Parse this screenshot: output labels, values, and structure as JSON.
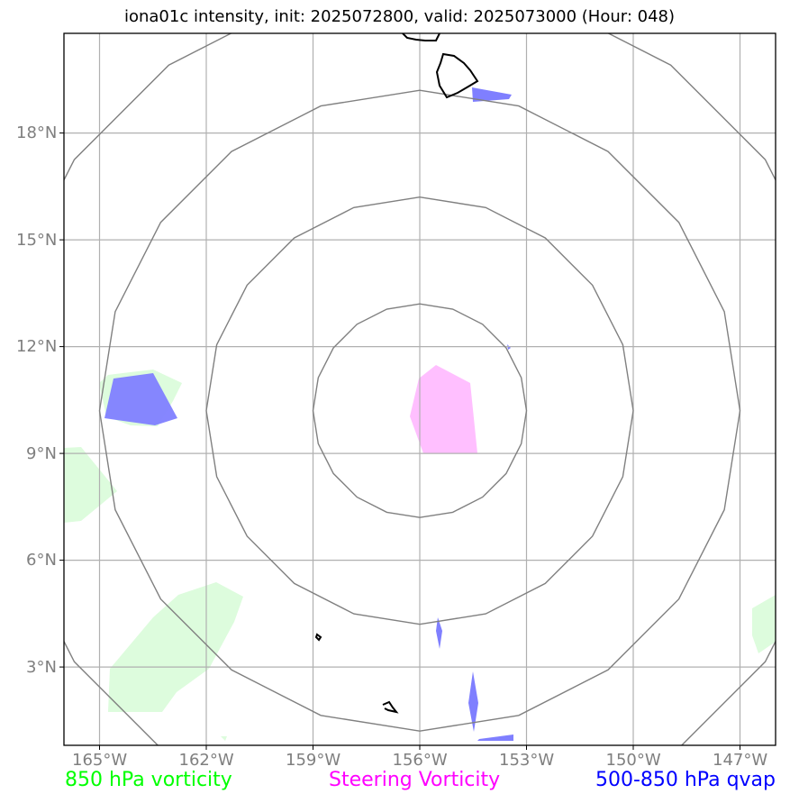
{
  "title": "iona01c intensity, init: 2025072800, valid: 2025073000 (Hour: 048)",
  "map": {
    "lon_range": [
      -166.0,
      -146.0
    ],
    "lat_range": [
      0.8,
      20.8
    ],
    "lon_ticks": [
      "165°W",
      "162°W",
      "159°W",
      "156°W",
      "153°W",
      "150°W",
      "147°W"
    ],
    "lat_ticks": [
      "3°N",
      "6°N",
      "9°N",
      "12°N",
      "15°N",
      "18°N"
    ],
    "gridlines": true,
    "center": {
      "lon": -156.0,
      "lat": 10.2
    },
    "range_rings_deg": [
      3,
      6,
      9,
      12
    ]
  },
  "legend": [
    {
      "label": "850 hPa vorticity",
      "color": "#00ff00"
    },
    {
      "label": "Steering Vorticity",
      "color": "#ff00ff"
    },
    {
      "label": "500-850 hPa qvap",
      "color": "#0000ff"
    }
  ],
  "colors": {
    "vorticity_850_fill": "#ddfcdd",
    "steering_fill": "#ffbfff",
    "qvap_fill": "#7f7fff",
    "ring": "#808080",
    "grid": "#b0b0b0",
    "coast": "#000000"
  }
}
